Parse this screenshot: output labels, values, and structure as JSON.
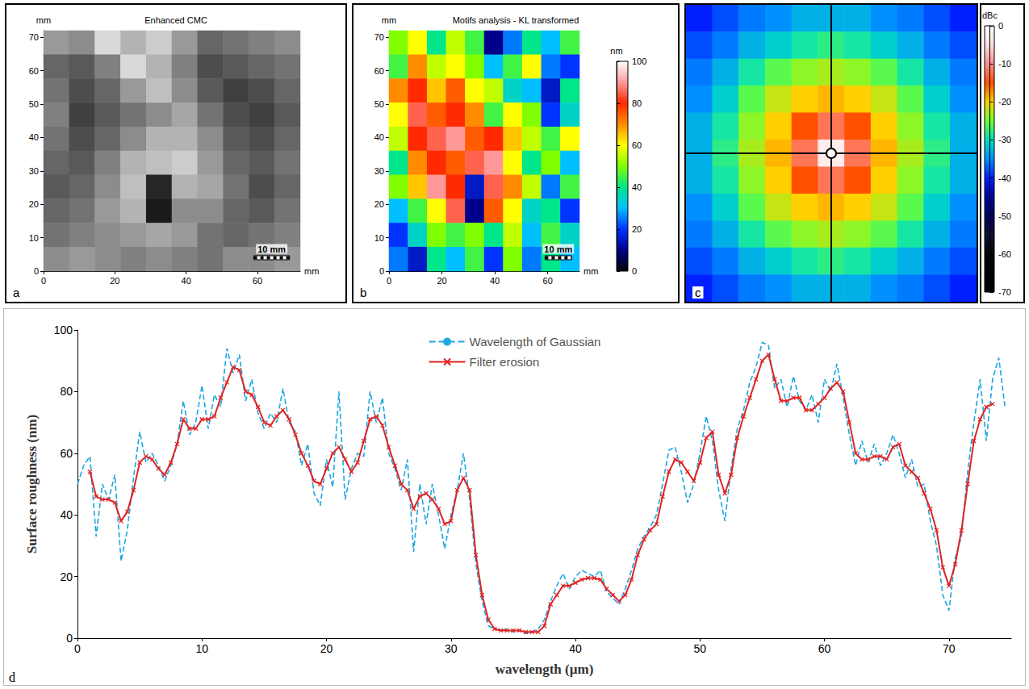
{
  "chart_data": [
    {
      "type": "heatmap",
      "panel": "a",
      "title": "Enhanced CMC",
      "x_label": "mm",
      "y_label": "mm",
      "xlim": [
        0,
        72
      ],
      "ylim": [
        0,
        72
      ],
      "xticks": [
        0,
        20,
        40,
        60
      ],
      "yticks": [
        0,
        10,
        20,
        30,
        40,
        50,
        60,
        70
      ],
      "cell_range": [
        0,
        100
      ],
      "cells": [
        [
          60,
          55,
          85,
          70,
          80,
          60,
          40,
          45,
          50,
          55
        ],
        [
          40,
          35,
          50,
          85,
          70,
          50,
          30,
          35,
          40,
          45
        ],
        [
          45,
          30,
          40,
          60,
          75,
          55,
          35,
          25,
          30,
          40
        ],
        [
          50,
          25,
          35,
          45,
          55,
          65,
          45,
          30,
          25,
          35
        ],
        [
          45,
          30,
          40,
          55,
          70,
          70,
          55,
          35,
          30,
          40
        ],
        [
          40,
          35,
          50,
          70,
          75,
          80,
          60,
          40,
          35,
          45
        ],
        [
          35,
          40,
          55,
          75,
          15,
          70,
          65,
          45,
          30,
          40
        ],
        [
          40,
          45,
          60,
          70,
          10,
          55,
          55,
          40,
          35,
          45
        ],
        [
          45,
          50,
          55,
          60,
          65,
          60,
          45,
          40,
          45,
          50
        ],
        [
          55,
          60,
          55,
          50,
          55,
          50,
          45,
          55,
          55,
          60
        ]
      ],
      "scale_bar": {
        "label": "10 mm",
        "length": 10
      }
    },
    {
      "type": "heatmap",
      "panel": "b",
      "title": "Motifs analysis - KL transformed",
      "x_label": "mm",
      "y_label": "mm",
      "xlim": [
        0,
        72
      ],
      "ylim": [
        0,
        72
      ],
      "xticks": [
        0,
        20,
        40,
        60
      ],
      "yticks": [
        0,
        10,
        20,
        30,
        40,
        50,
        60,
        70
      ],
      "cells": [
        [
          50,
          60,
          40,
          55,
          45,
          10,
          25,
          40,
          30,
          45
        ],
        [
          45,
          70,
          55,
          60,
          50,
          30,
          45,
          60,
          25,
          20
        ],
        [
          70,
          80,
          65,
          75,
          60,
          55,
          35,
          30,
          15,
          40
        ],
        [
          60,
          85,
          75,
          80,
          70,
          45,
          60,
          50,
          20,
          35
        ],
        [
          55,
          80,
          85,
          90,
          75,
          80,
          65,
          55,
          45,
          60
        ],
        [
          40,
          70,
          80,
          75,
          85,
          90,
          60,
          40,
          50,
          30
        ],
        [
          50,
          65,
          90,
          80,
          15,
          85,
          70,
          55,
          25,
          45
        ],
        [
          30,
          45,
          60,
          85,
          10,
          75,
          60,
          35,
          40,
          20
        ],
        [
          20,
          35,
          50,
          45,
          50,
          40,
          55,
          30,
          45,
          35
        ],
        [
          25,
          15,
          40,
          30,
          45,
          20,
          50,
          25,
          40,
          30
        ]
      ],
      "colorbar": {
        "label": "nm",
        "range": [
          0,
          100
        ],
        "ticks": [
          0,
          20,
          40,
          60,
          80,
          100
        ]
      },
      "scale_bar": {
        "label": "10 mm",
        "length": 10
      }
    },
    {
      "type": "heatmap",
      "panel": "c",
      "tick_labels": false,
      "cells": [
        [
          -40,
          -38,
          -36,
          -35,
          -33,
          -33,
          -33,
          -35,
          -36,
          -38,
          -40
        ],
        [
          -38,
          -36,
          -33,
          -31,
          -29,
          -28,
          -29,
          -31,
          -33,
          -36,
          -38
        ],
        [
          -36,
          -33,
          -29,
          -26,
          -24,
          -23,
          -24,
          -26,
          -29,
          -33,
          -36
        ],
        [
          -35,
          -31,
          -26,
          -22,
          -20,
          -19,
          -20,
          -22,
          -26,
          -31,
          -35
        ],
        [
          -33,
          -29,
          -24,
          -20,
          -15,
          -12,
          -15,
          -20,
          -24,
          -29,
          -33
        ],
        [
          -33,
          -28,
          -23,
          -19,
          -12,
          -3,
          -12,
          -19,
          -23,
          -28,
          -33
        ],
        [
          -33,
          -29,
          -24,
          -20,
          -15,
          -12,
          -15,
          -20,
          -24,
          -29,
          -33
        ],
        [
          -35,
          -31,
          -26,
          -22,
          -20,
          -19,
          -20,
          -22,
          -26,
          -31,
          -35
        ],
        [
          -36,
          -33,
          -29,
          -26,
          -24,
          -23,
          -24,
          -26,
          -29,
          -33,
          -36
        ],
        [
          -38,
          -36,
          -33,
          -31,
          -29,
          -28,
          -29,
          -31,
          -33,
          -36,
          -38
        ],
        [
          -40,
          -38,
          -36,
          -35,
          -33,
          -33,
          -33,
          -35,
          -36,
          -38,
          -40
        ]
      ],
      "colorbar": {
        "label": "dBc",
        "range": [
          -70,
          0
        ],
        "ticks": [
          -70,
          -60,
          -50,
          -40,
          -30,
          -20,
          -10,
          0
        ]
      }
    },
    {
      "type": "line",
      "panel": "d",
      "x_label": "wavelength (µm)",
      "y_label": "Surface roughness (nm)",
      "xlim": [
        0,
        75
      ],
      "ylim": [
        0,
        100
      ],
      "xticks": [
        0,
        10,
        20,
        30,
        40,
        50,
        60,
        70
      ],
      "yticks": [
        0,
        20,
        40,
        60,
        80,
        100
      ],
      "grid": false,
      "legend": "top",
      "series": [
        {
          "name": "Wavelength of Gaussian",
          "color": "#1ba6e0",
          "line_style": "dashed",
          "marker": "none",
          "x": [
            0,
            0.5,
            1,
            1.5,
            2,
            2.5,
            3,
            3.5,
            4,
            4.5,
            5,
            5.5,
            6,
            6.5,
            7,
            7.5,
            8,
            8.5,
            9,
            9.5,
            10,
            10.5,
            11,
            11.5,
            12,
            12.5,
            13,
            13.5,
            14,
            14.5,
            15,
            15.5,
            16,
            16.5,
            17,
            17.5,
            18,
            18.5,
            19,
            19.5,
            20,
            20.5,
            21,
            21.5,
            22,
            22.5,
            23,
            23.5,
            24,
            24.5,
            25,
            25.5,
            26,
            26.5,
            27,
            27.5,
            28,
            28.5,
            29,
            29.5,
            30,
            30.5,
            31,
            31.5,
            32,
            32.5,
            33,
            33.5,
            34,
            34.5,
            35,
            35.5,
            36,
            36.5,
            37,
            37.5,
            38,
            38.5,
            39,
            39.5,
            40,
            40.5,
            41,
            41.5,
            42,
            42.5,
            43,
            43.5,
            44,
            44.5,
            45,
            45.5,
            46,
            46.5,
            47,
            47.5,
            48,
            48.5,
            49,
            49.5,
            50,
            50.5,
            51,
            51.5,
            52,
            52.5,
            53,
            53.5,
            54,
            54.5,
            55,
            55.5,
            56,
            56.5,
            57,
            57.5,
            58,
            58.5,
            59,
            59.5,
            60,
            60.5,
            61,
            61.5,
            62,
            62.5,
            63,
            63.5,
            64,
            64.5,
            65,
            65.5,
            66,
            66.5,
            67,
            67.5,
            68,
            68.5,
            69,
            69.5,
            70,
            70.5,
            71,
            71.5,
            72,
            72.5,
            73,
            73.5,
            74,
            74.5
          ],
          "values": [
            50,
            56,
            59,
            33,
            50,
            45,
            53,
            25,
            35,
            52,
            67,
            57,
            60,
            56,
            51,
            56,
            63,
            77,
            66,
            70,
            82,
            68,
            79,
            75,
            94,
            86,
            92,
            77,
            84,
            73,
            68,
            73,
            70,
            81,
            70,
            67,
            56,
            63,
            47,
            43,
            58,
            49,
            80,
            45,
            55,
            60,
            59,
            80,
            70,
            78,
            60,
            55,
            48,
            58,
            28,
            50,
            37,
            50,
            40,
            29,
            40,
            48,
            60,
            45,
            24,
            12,
            4,
            3,
            2.5,
            3,
            2,
            2.5,
            1.5,
            2,
            3,
            6,
            12,
            17,
            21,
            16,
            20,
            22,
            21,
            20,
            22,
            15,
            13,
            11,
            16,
            22,
            29,
            33,
            36,
            40,
            50,
            61,
            62,
            54,
            44,
            50,
            60,
            72,
            64,
            48,
            38,
            55,
            68,
            74,
            83,
            88,
            96,
            95,
            81,
            84,
            75,
            85,
            77,
            74,
            79,
            70,
            84,
            80,
            89,
            78,
            66,
            56,
            64,
            57,
            63,
            56,
            60,
            66,
            60,
            52,
            58,
            49,
            50,
            38,
            30,
            14,
            9,
            26,
            33,
            54,
            70,
            84,
            64,
            84,
            91,
            75
          ]
        },
        {
          "name": "Filter erosion",
          "color": "#e02424",
          "line_style": "solid",
          "marker": "x",
          "x": [
            1,
            1.5,
            2,
            2.5,
            3,
            3.5,
            4,
            4.5,
            5,
            5.5,
            6,
            6.5,
            7,
            7.5,
            8,
            8.5,
            9,
            9.5,
            10,
            10.5,
            11,
            11.5,
            12,
            12.5,
            13,
            13.5,
            14,
            14.5,
            15,
            15.5,
            16,
            16.5,
            17,
            17.5,
            18,
            18.5,
            19,
            19.5,
            20,
            20.5,
            21,
            21.5,
            22,
            22.5,
            23,
            23.5,
            24,
            24.5,
            25,
            25.5,
            26,
            26.5,
            27,
            27.5,
            28,
            28.5,
            29,
            29.5,
            30,
            30.5,
            31,
            31.5,
            32,
            32.5,
            33,
            33.5,
            34,
            34.5,
            35,
            35.5,
            36,
            36.5,
            37,
            37.5,
            38,
            38.5,
            39,
            39.5,
            40,
            40.5,
            41,
            41.5,
            42,
            42.5,
            43,
            43.5,
            44,
            44.5,
            45,
            45.5,
            46,
            46.5,
            47,
            47.5,
            48,
            48.5,
            49,
            49.5,
            50,
            50.5,
            51,
            51.5,
            52,
            52.5,
            53,
            53.5,
            54,
            54.5,
            55,
            55.5,
            56,
            56.5,
            57,
            57.5,
            58,
            58.5,
            59,
            59.5,
            60,
            60.5,
            61,
            61.5,
            62,
            62.5,
            63,
            63.5,
            64,
            64.5,
            65,
            65.5,
            66,
            66.5,
            67,
            67.5,
            68,
            68.5,
            69,
            69.5,
            70,
            70.5,
            71,
            71.5,
            72,
            72.5,
            73,
            73.5
          ],
          "values": [
            54,
            46,
            45,
            45,
            44,
            38,
            41,
            48,
            57,
            59,
            58,
            55,
            53,
            57,
            63,
            71,
            68,
            68,
            71,
            71,
            72,
            78,
            83,
            88,
            87,
            80,
            79,
            75,
            70,
            69,
            72,
            74,
            71,
            66,
            60,
            56,
            51,
            50,
            55,
            60,
            62,
            58,
            54,
            57,
            64,
            71,
            72,
            69,
            62,
            56,
            50,
            48,
            42,
            46,
            47,
            45,
            42,
            37,
            38,
            48,
            52,
            48,
            27,
            14,
            6,
            3,
            2.5,
            2.5,
            2.5,
            2.5,
            2,
            2,
            2,
            4,
            11,
            14,
            17,
            17,
            18,
            19,
            19.5,
            19.5,
            19,
            16,
            14,
            12,
            14,
            19,
            27,
            32,
            35,
            37,
            46,
            54,
            58,
            57,
            54,
            51,
            57,
            65,
            67,
            53,
            47,
            53,
            65,
            72,
            78,
            84,
            90,
            92,
            84,
            77,
            77,
            78,
            78,
            74,
            74,
            76,
            78,
            81,
            83,
            80,
            70,
            60,
            58,
            58,
            59,
            59,
            58,
            62,
            63,
            56,
            54,
            52,
            47,
            42,
            35,
            23,
            17,
            24,
            35,
            50,
            64,
            71,
            75,
            76
          ]
        }
      ]
    }
  ]
}
